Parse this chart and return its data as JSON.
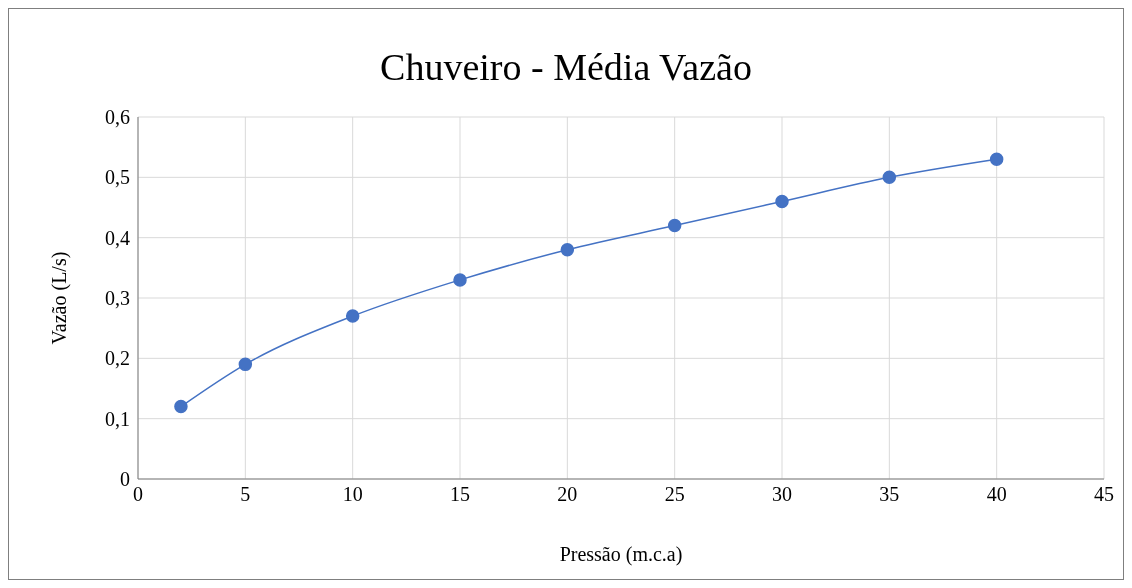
{
  "chart_data": {
    "type": "line",
    "title": "Chuveiro - Média Vazão",
    "xlabel": "Pressão (m.c.a)",
    "ylabel": "Vazão (L/s)",
    "x": [
      2,
      5,
      10,
      15,
      20,
      25,
      30,
      35,
      40
    ],
    "series": [
      {
        "color": "#4472c4",
        "values": [
          0.12,
          0.19,
          0.27,
          0.33,
          0.38,
          0.42,
          0.46,
          0.5,
          0.53
        ]
      }
    ],
    "xlim": [
      0,
      45
    ],
    "xticks": [
      0,
      5,
      10,
      15,
      20,
      25,
      30,
      35,
      40,
      45
    ],
    "ylim": [
      0,
      0.6
    ],
    "yticks": [
      0,
      {
        "value": 0.1,
        "label": "0,1"
      },
      {
        "value": 0.2,
        "label": "0,2"
      },
      {
        "value": 0.3,
        "label": "0,3"
      },
      {
        "value": 0.4,
        "label": "0,4"
      },
      {
        "value": 0.5,
        "label": "0,5"
      },
      {
        "value": 0.6,
        "label": "0,6"
      }
    ],
    "grid": true,
    "legend": false,
    "marker": "circle",
    "line_style": "solid"
  }
}
